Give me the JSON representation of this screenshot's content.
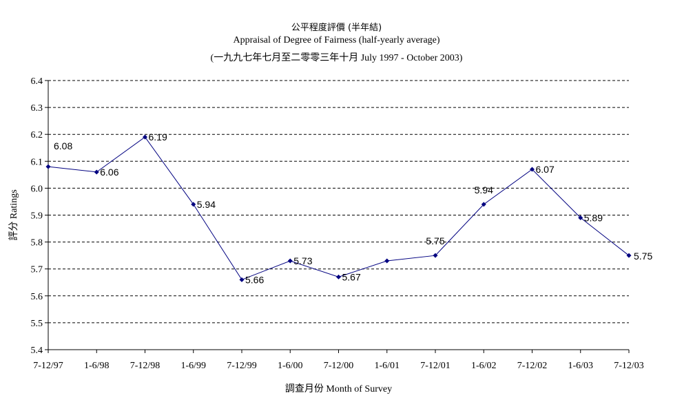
{
  "title": {
    "line1": "公平程度評價 (半年結)",
    "line2": "Appraisal of Degree of Fairness (half-yearly average)",
    "line3": "(一九九七年七月至二零零三年十月 July 1997 - October 2003)"
  },
  "chart_data": {
    "type": "line",
    "title": "公平程度評價 (半年結)",
    "subtitle": "Appraisal of Degree of Fairness (half-yearly average)",
    "xlabel": "調查月份 Month of Survey",
    "ylabel": "評分 Ratings",
    "ylim": [
      5.4,
      6.4
    ],
    "ytick_step": 0.1,
    "yticks": [
      "5.4",
      "5.5",
      "5.6",
      "5.7",
      "5.8",
      "5.9",
      "6.0",
      "6.1",
      "6.2",
      "6.3",
      "6.4"
    ],
    "categories": [
      "7-12/97",
      "1-6/98",
      "7-12/98",
      "1-6/99",
      "7-12/99",
      "1-6/00",
      "7-12/00",
      "1-6/01",
      "7-12/01",
      "1-6/02",
      "7-12/02",
      "1-6/03",
      "7-12/03"
    ],
    "series": [
      {
        "values": [
          6.08,
          6.06,
          6.19,
          5.94,
          5.66,
          5.73,
          5.67,
          5.73,
          5.75,
          5.94,
          6.07,
          5.89,
          5.75
        ],
        "data_labels": [
          "6.08",
          "6.06",
          "6.19",
          "5.94",
          "5.66",
          "5.73",
          "5.67",
          null,
          "5.75",
          "5.94",
          "6.07",
          "5.89",
          "5.75"
        ],
        "color": "#000080"
      }
    ],
    "grid": "horizontal dashed",
    "legend": "none"
  }
}
